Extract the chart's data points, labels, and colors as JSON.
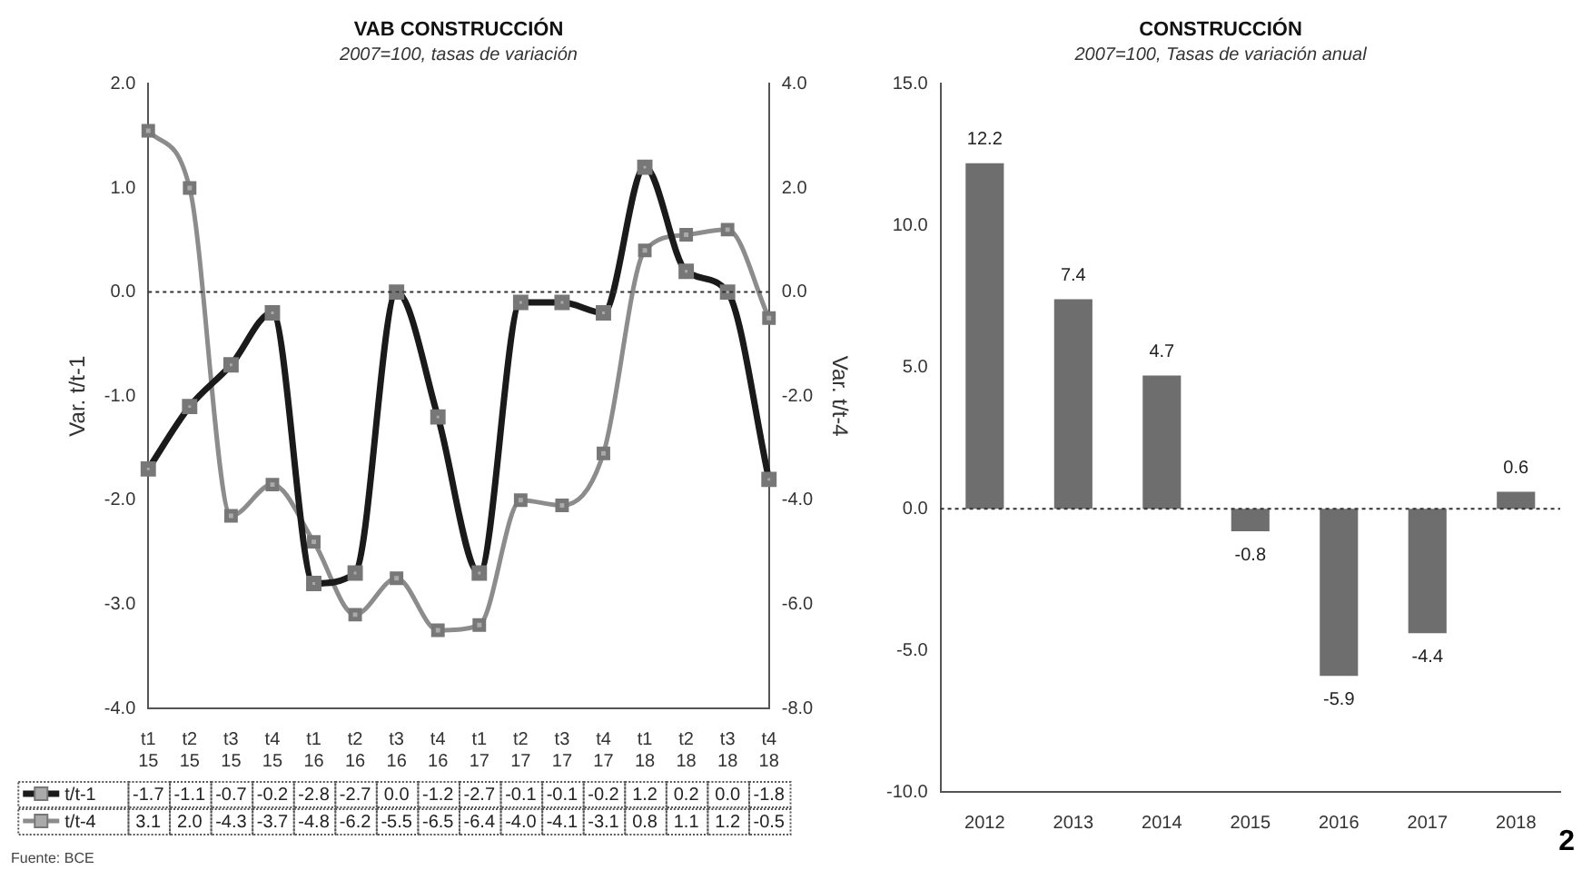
{
  "chart_data": [
    {
      "type": "line",
      "title": "VAB CONSTRUCCIÓN",
      "subtitle": "2007=100, tasas de variación",
      "ylabel": "Var. t/t-1",
      "y2label": "Var. t/t-4",
      "categories": [
        "t1 15",
        "t2 15",
        "t3 15",
        "t4 15",
        "t1 16",
        "t2 16",
        "t3 16",
        "t4 16",
        "t1 17",
        "t2 17",
        "t3 17",
        "t4 17",
        "t1 18",
        "t2 18",
        "t3 18",
        "t4 18"
      ],
      "series": [
        {
          "name": "t/t-1",
          "color": "#1a1a1a",
          "values": [
            -1.7,
            -1.1,
            -0.7,
            -0.2,
            -2.8,
            -2.7,
            0.0,
            -1.2,
            -2.7,
            -0.1,
            -0.1,
            -0.2,
            1.2,
            0.2,
            0.0,
            -1.8
          ],
          "value_labels": [
            "-1.7",
            "-1.1",
            "-0.7",
            "-0.2",
            "-2.8",
            "-2.7",
            "0.0",
            "-1.2",
            "-2.7",
            "-0.1",
            "-0.1",
            "-0.2",
            "1.2",
            "0.2",
            "0.0",
            "-1.8"
          ]
        },
        {
          "name": "t/t-4",
          "color": "#8c8c8c",
          "axis": "y2",
          "values": [
            3.1,
            2.0,
            -4.3,
            -3.7,
            -4.8,
            -6.2,
            -5.5,
            -6.5,
            -6.4,
            -4.0,
            -4.1,
            -3.1,
            0.8,
            1.1,
            1.2,
            -0.5
          ],
          "value_labels": [
            "3.1",
            "2.0",
            "-4.3",
            "-3.7",
            "-4.8",
            "-6.2",
            "-5.5",
            "-6.5",
            "-6.4",
            "-4.0",
            "-4.1",
            "-3.1",
            "0.8",
            "1.1",
            "1.2",
            "-0.5"
          ]
        }
      ],
      "ylim": [
        -4,
        2
      ],
      "yticks": [
        {
          "value": -4,
          "label": "-4.0"
        },
        {
          "value": -3,
          "label": "-3.0"
        },
        {
          "value": -2,
          "label": "-2.0"
        },
        {
          "value": -1,
          "label": "-1.0"
        },
        {
          "value": 0,
          "label": "0.0"
        },
        {
          "value": 1,
          "label": "1.0"
        },
        {
          "value": 2,
          "label": "2.0"
        }
      ],
      "y2lim": [
        -8,
        4
      ],
      "y2ticks": [
        {
          "value": -8,
          "label": "-8.0"
        },
        {
          "value": -6,
          "label": "-6.0"
        },
        {
          "value": -4,
          "label": "-4.0"
        },
        {
          "value": -2,
          "label": "-2.0"
        },
        {
          "value": 0,
          "label": "0.0"
        },
        {
          "value": 2,
          "label": "2.0"
        },
        {
          "value": 4,
          "label": "4.0"
        }
      ],
      "ref_lines": [
        {
          "axis": "y",
          "value": 0,
          "line_style": "dotted",
          "color": "#333333"
        }
      ],
      "legend": "bottom",
      "marker": "square",
      "grid": false,
      "annotations": [
        "Fuente: BCE"
      ]
    },
    {
      "type": "bar",
      "title": "CONSTRUCCIÓN",
      "subtitle": "2007=100, Tasas de variación anual",
      "categories": [
        "2012",
        "2013",
        "2014",
        "2015",
        "2016",
        "2017",
        "2018"
      ],
      "values": [
        12.2,
        7.4,
        4.7,
        -0.8,
        -5.9,
        -4.4,
        0.6
      ],
      "color": "#6e6e6e",
      "ylim": [
        -10,
        15
      ],
      "yticks": [
        {
          "value": -10,
          "label": "-10.0"
        },
        {
          "value": -5,
          "label": "-5.0"
        },
        {
          "value": 0,
          "label": "0.0"
        },
        {
          "value": 5,
          "label": "5.0"
        },
        {
          "value": 10,
          "label": "10.0"
        },
        {
          "value": 15,
          "label": "15.0"
        }
      ],
      "ref_lines": [
        {
          "axis": "y",
          "value": 0,
          "line_style": "dotted",
          "color": "#333333"
        }
      ],
      "data_labels": true,
      "grid": false,
      "annotations": [
        "2"
      ]
    }
  ]
}
